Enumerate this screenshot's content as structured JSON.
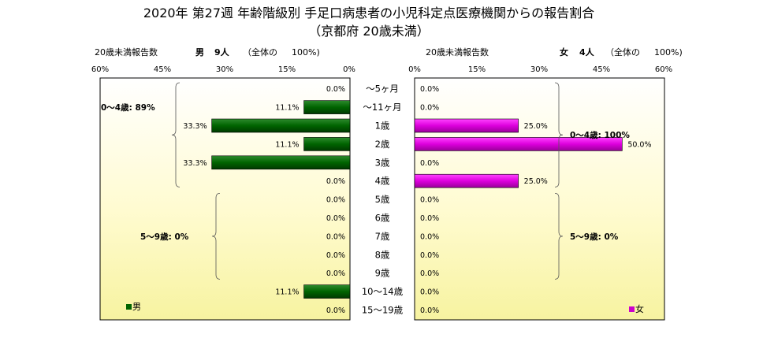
{
  "title": "2020年 第27週 年齢階級別 手足口病患者の小児科定点医療機関からの報告割合",
  "subtitle": "（京都府 20歳未満）",
  "left_header": {
    "label": "20歳未満報告数",
    "sex": "男",
    "count": "9人",
    "note": "（全体の",
    "pct": "100%)"
  },
  "right_header": {
    "label": "20歳未満報告数",
    "sex": "女",
    "count": "4人",
    "note": "（全体の",
    "pct": "100%)"
  },
  "chart_data": {
    "type": "bar",
    "orientation": "horizontal-butterfly",
    "categories": [
      "〜5ヶ月",
      "〜11ヶ月",
      "1歳",
      "2歳",
      "3歳",
      "4歳",
      "5歳",
      "6歳",
      "7歳",
      "8歳",
      "9歳",
      "10〜14歳",
      "15〜19歳"
    ],
    "series": [
      {
        "name": "男",
        "color": "#006400",
        "values": [
          0.0,
          11.1,
          33.3,
          11.1,
          33.3,
          0.0,
          0.0,
          0.0,
          0.0,
          0.0,
          0.0,
          11.1,
          0.0
        ],
        "labels": [
          "0.0%",
          "11.1%",
          "33.3%",
          "11.1%",
          "33.3%",
          "0.0%",
          "0.0%",
          "0.0%",
          "0.0%",
          "0.0%",
          "0.0%",
          "11.1%",
          "0.0%"
        ]
      },
      {
        "name": "女",
        "color": "#cc00cc",
        "values": [
          0.0,
          0.0,
          25.0,
          50.0,
          0.0,
          25.0,
          0.0,
          0.0,
          0.0,
          0.0,
          0.0,
          0.0,
          0.0
        ],
        "labels": [
          "0.0%",
          "0.0%",
          "25.0%",
          "50.0%",
          "0.0%",
          "25.0%",
          "0.0%",
          "0.0%",
          "0.0%",
          "0.0%",
          "0.0%",
          "0.0%",
          "0.0%"
        ]
      }
    ],
    "left_ticks": [
      "60%",
      "45%",
      "30%",
      "15%",
      "0%"
    ],
    "right_ticks": [
      "0%",
      "15%",
      "30%",
      "45%",
      "60%"
    ],
    "xlim": [
      0,
      60
    ],
    "group_labels_left": [
      {
        "text": "0〜4歳: 89%",
        "from": 0,
        "to": 5
      },
      {
        "text": "5〜9歳: 0%",
        "from": 6,
        "to": 10
      }
    ],
    "group_labels_right": [
      {
        "text": "0〜4歳: 100%",
        "from": 0,
        "to": 5
      },
      {
        "text": "5〜9歳: 0%",
        "from": 6,
        "to": 10
      }
    ],
    "legend_left": "男",
    "legend_right": "女",
    "background": "yellow-gradient"
  }
}
